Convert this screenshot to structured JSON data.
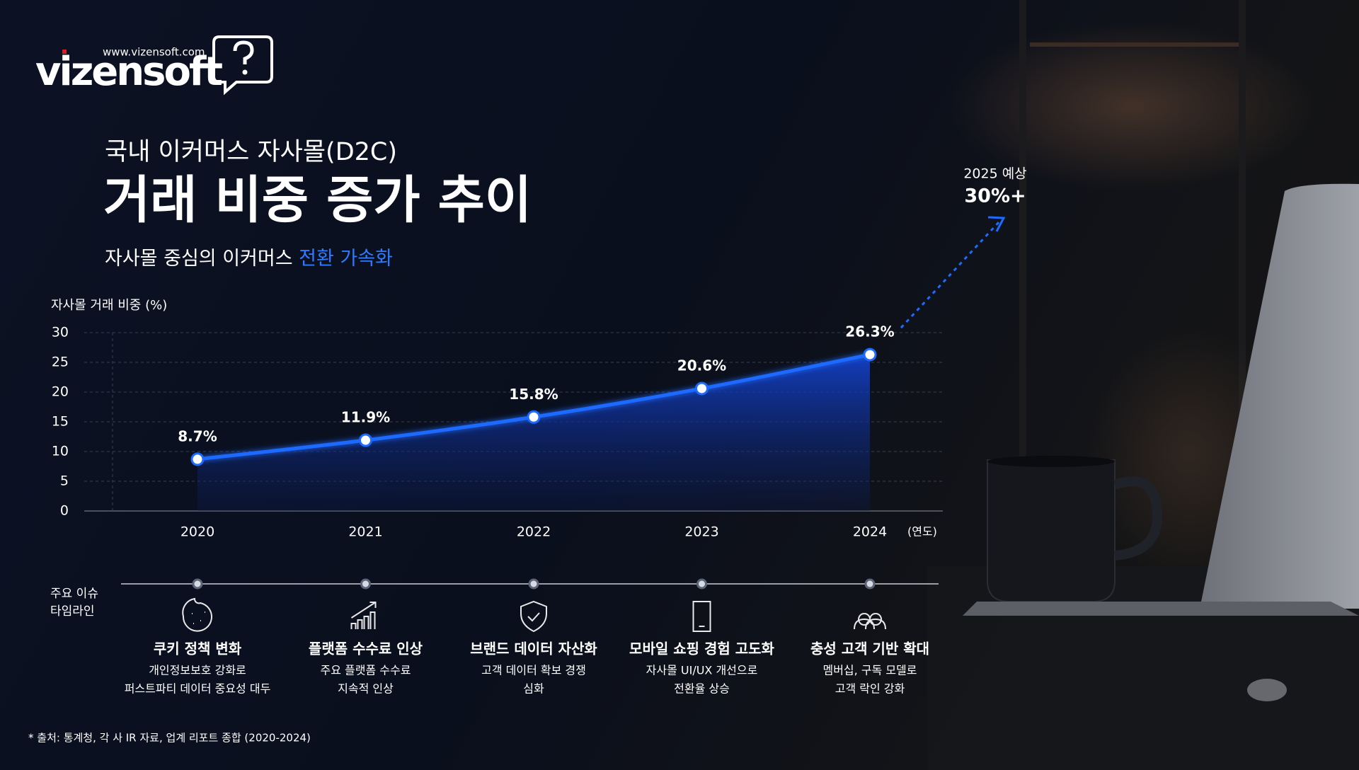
{
  "brand": {
    "url": "www.vizensoft.com",
    "name": "vizensoft"
  },
  "header": {
    "kicker": "국내 이커머스 자사몰(D2C)",
    "title": "거래 비중 증가 추이",
    "subtitle": [
      "자사몰 중심의 이커머스 ",
      "전환 가속화"
    ]
  },
  "chart_data": {
    "type": "line",
    "y_label": "자사몰 거래 비중 (%)",
    "x_label": "(연도)",
    "categories": [
      "2020",
      "2021",
      "2022",
      "2023",
      "2024"
    ],
    "values": [
      8.7,
      11.9,
      15.8,
      20.6,
      26.3
    ],
    "value_labels": [
      "8.7%",
      "11.9%",
      "15.8%",
      "20.6%",
      "26.3%"
    ],
    "color": "#1e6bff",
    "ylim": [
      0,
      30
    ],
    "yticks": [
      0,
      5,
      10,
      15,
      20,
      25,
      30
    ],
    "grid": true,
    "annotation": {
      "label": "2025 예상",
      "value": "30%+"
    }
  },
  "timeline": {
    "label": [
      "주요 이슈",
      "타임라인"
    ],
    "items": [
      {
        "title": "쿠키 정책 변화",
        "desc": [
          "개인정보보호 강화로",
          "퍼스트파티 데이터 중요성 대두"
        ]
      },
      {
        "title": "플랫폼 수수료 인상",
        "desc": [
          "주요 플랫폼 수수료",
          "지속적 인상"
        ]
      },
      {
        "title": "브랜드 데이터 자산화",
        "desc": [
          "고객 데이터 확보 경쟁",
          "심화"
        ]
      },
      {
        "title": "모바일 쇼핑 경험 고도화",
        "desc": [
          "자사몰 UI/UX 개선으로",
          "전환율 상승"
        ]
      },
      {
        "title": "충성 고객 기반 확대",
        "desc": [
          "멤버십, 구독 모델로",
          "고객 락인 강화"
        ]
      }
    ]
  },
  "footnote": "* 출처: 통계청, 각 사 IR 자료, 업계 리포트 종합 (2020-2024)"
}
